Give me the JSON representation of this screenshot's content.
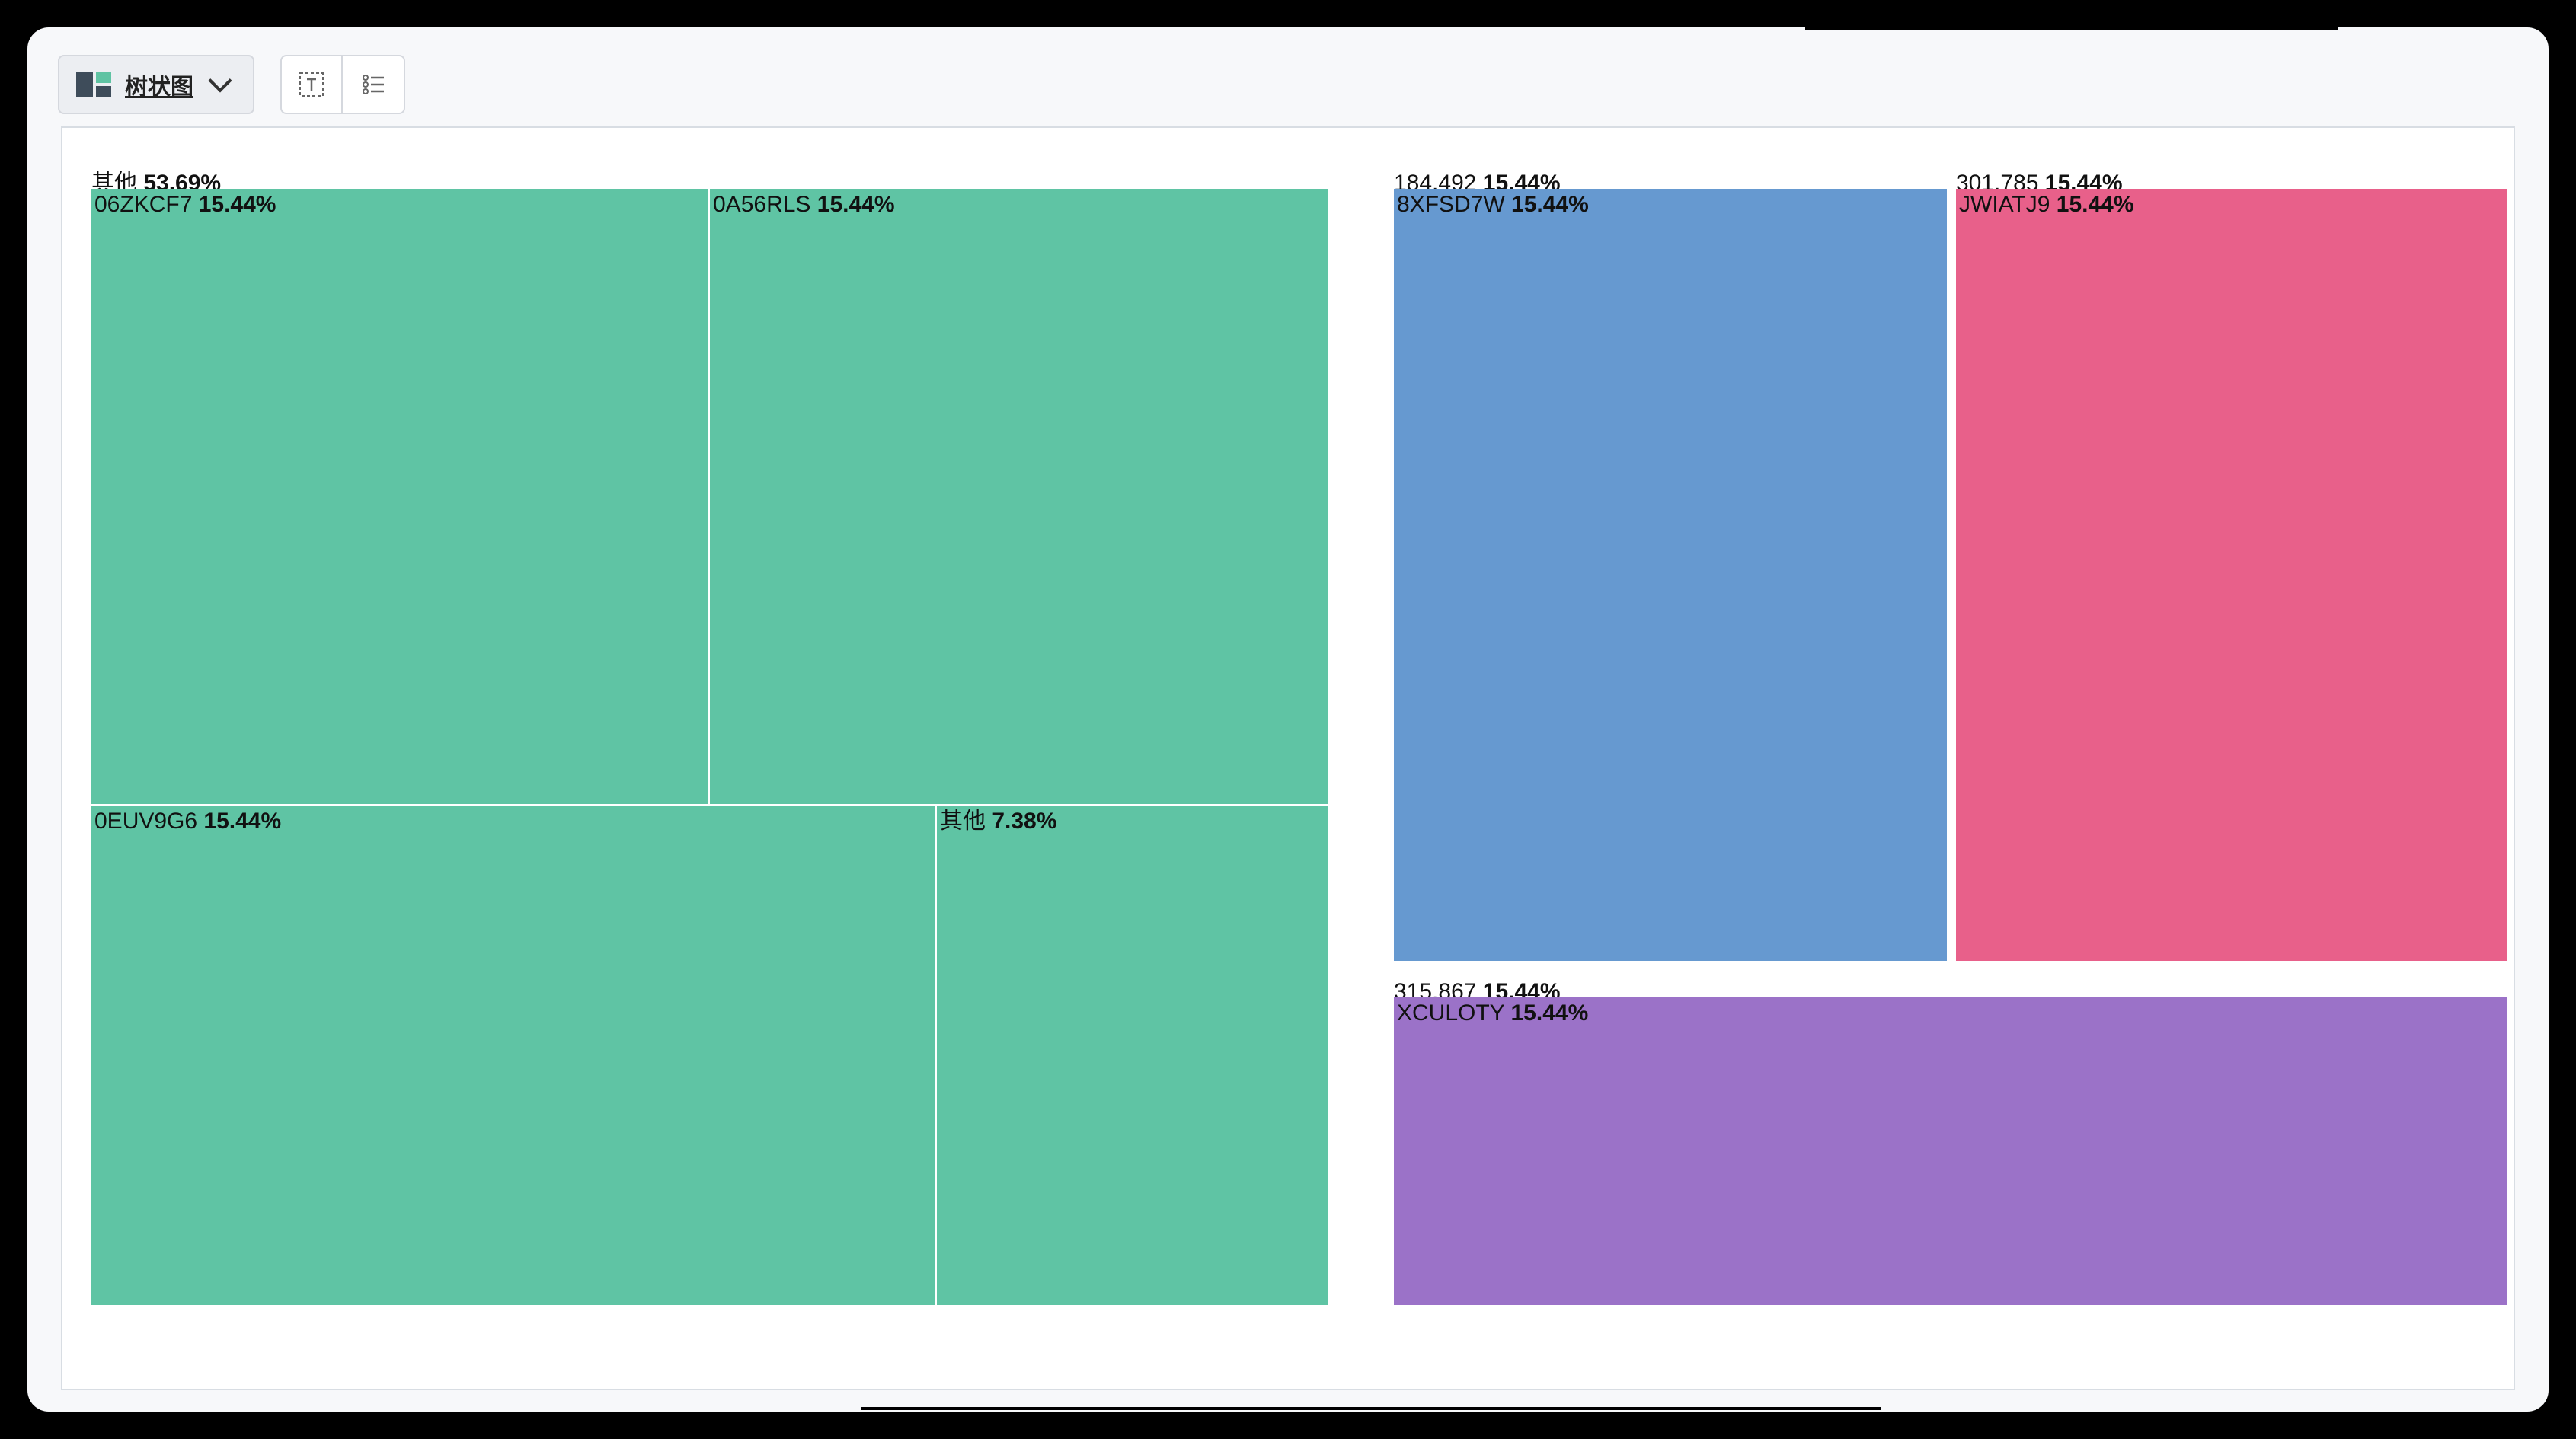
{
  "toolbar": {
    "chart_type_label": "树状图",
    "icons": [
      "treemap-icon",
      "chevron-down-icon",
      "fit-text-icon",
      "legend-list-icon"
    ]
  },
  "colors": {
    "green": "#5fc4a4",
    "blue": "#6699d0",
    "pink": "#e8608a",
    "purple": "#9b72c8"
  },
  "chart_data": {
    "type": "treemap",
    "title": "",
    "groups": [
      {
        "name": "其他",
        "percent": "53.69%",
        "color": "green",
        "children": [
          {
            "name": "06ZKCF7",
            "percent": "15.44%",
            "value": 15.44
          },
          {
            "name": "0A56RLS",
            "percent": "15.44%",
            "value": 15.44
          },
          {
            "name": "0EUV9G6",
            "percent": "15.44%",
            "value": 15.44
          },
          {
            "name": "其他",
            "percent": "7.38%",
            "value": 7.38
          }
        ]
      },
      {
        "name": "184.492",
        "percent": "15.44%",
        "color": "blue",
        "children": [
          {
            "name": "8XFSD7W",
            "percent": "15.44%",
            "value": 15.44
          }
        ]
      },
      {
        "name": "301.785",
        "percent": "15.44%",
        "color": "pink",
        "children": [
          {
            "name": "JWIATJ9",
            "percent": "15.44%",
            "value": 15.44
          }
        ]
      },
      {
        "name": "315.867",
        "percent": "15.44%",
        "color": "purple",
        "children": [
          {
            "name": "XCULOTY",
            "percent": "15.44%",
            "value": 15.44
          }
        ]
      }
    ]
  }
}
